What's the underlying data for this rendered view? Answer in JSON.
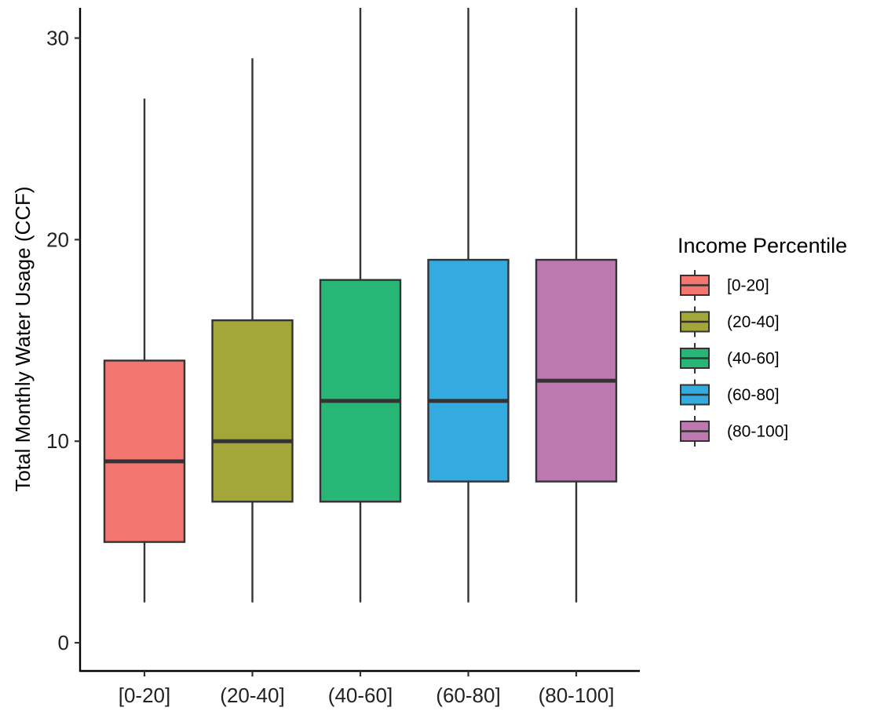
{
  "chart_data": {
    "type": "box",
    "title": "",
    "xlabel": "",
    "ylabel": "Total Monthly Water Usage (CCF)",
    "ylim": [
      -1.4,
      31.5
    ],
    "yticks": [
      0,
      10,
      20,
      30
    ],
    "categories": [
      "[0-20]",
      "(20-40]",
      "(40-60]",
      "(60-80]",
      "(80-100]"
    ],
    "series": [
      {
        "category": "[0-20]",
        "whisker_low": 2,
        "q1": 5,
        "median": 9,
        "q3": 14,
        "whisker_high": 27,
        "color": "#F37770"
      },
      {
        "category": "(20-40]",
        "whisker_low": 2,
        "q1": 7,
        "median": 10,
        "q3": 16,
        "whisker_high": 29,
        "color": "#A3A639"
      },
      {
        "category": "(40-60]",
        "whisker_low": 2,
        "q1": 7,
        "median": 12,
        "q3": 18,
        "whisker_high": 31.5,
        "color": "#28B677"
      },
      {
        "category": "(60-80]",
        "whisker_low": 2,
        "q1": 8,
        "median": 12,
        "q3": 19,
        "whisker_high": 31.5,
        "color": "#33ABE1"
      },
      {
        "category": "(80-100]",
        "whisker_low": 2,
        "q1": 8,
        "median": 13,
        "q3": 19,
        "whisker_high": 31.5,
        "color": "#BD78B1"
      }
    ],
    "legend": {
      "title": "Income Percentile",
      "placement": "right",
      "entries": [
        "[0-20]",
        "(20-40]",
        "(40-60]",
        "(60-80]",
        "(80-100]"
      ]
    },
    "grid": false
  }
}
